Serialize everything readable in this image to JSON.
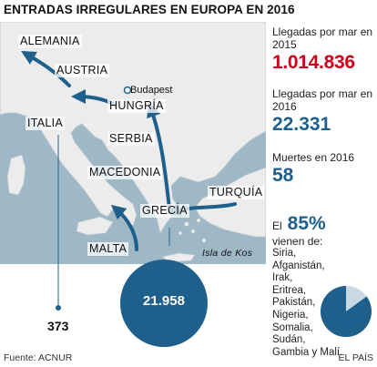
{
  "title": "ENTRADAS IRREGULARES EN EUROPA EN 2016",
  "map": {
    "countries": [
      "ALEMANIA",
      "AUSTRIA",
      "HUNGRÍA",
      "ITALIA",
      "SERBIA",
      "MACEDONIA",
      "GRECIA",
      "TURQUÍA",
      "MALTA"
    ],
    "city": "Budapest",
    "island": "Isla de Kos",
    "colors": {
      "sea": "#9fb8c6",
      "land": "#ececec",
      "route": "#1e5f8c"
    }
  },
  "values": {
    "greece": "21.958",
    "italy": "373"
  },
  "stats": {
    "arrivals_2015_label": "Llegadas por mar en 2015",
    "arrivals_2015_value": "1.014.836",
    "arrivals_2016_label": "Llegadas por mar en 2016",
    "arrivals_2016_value": "22.331",
    "deaths_label": "Muertes en 2016",
    "deaths_value": "58",
    "share_prefix": "El",
    "share_value": "85%",
    "share_text": "vienen de:",
    "countries": [
      "Siria,",
      "Afganistán,",
      "Irak,",
      "Eritrea,",
      "Pakistán,",
      "Nigeria,",
      "Somalia,",
      "Sudán,",
      "Gambia y Malí."
    ]
  },
  "pie": {
    "share": 0.85,
    "color_main": "#1e5f8c",
    "color_rest": "#c9d9e4"
  },
  "footer": {
    "source": "Fuente: ACNUR",
    "publisher": "EL PAÍS"
  }
}
